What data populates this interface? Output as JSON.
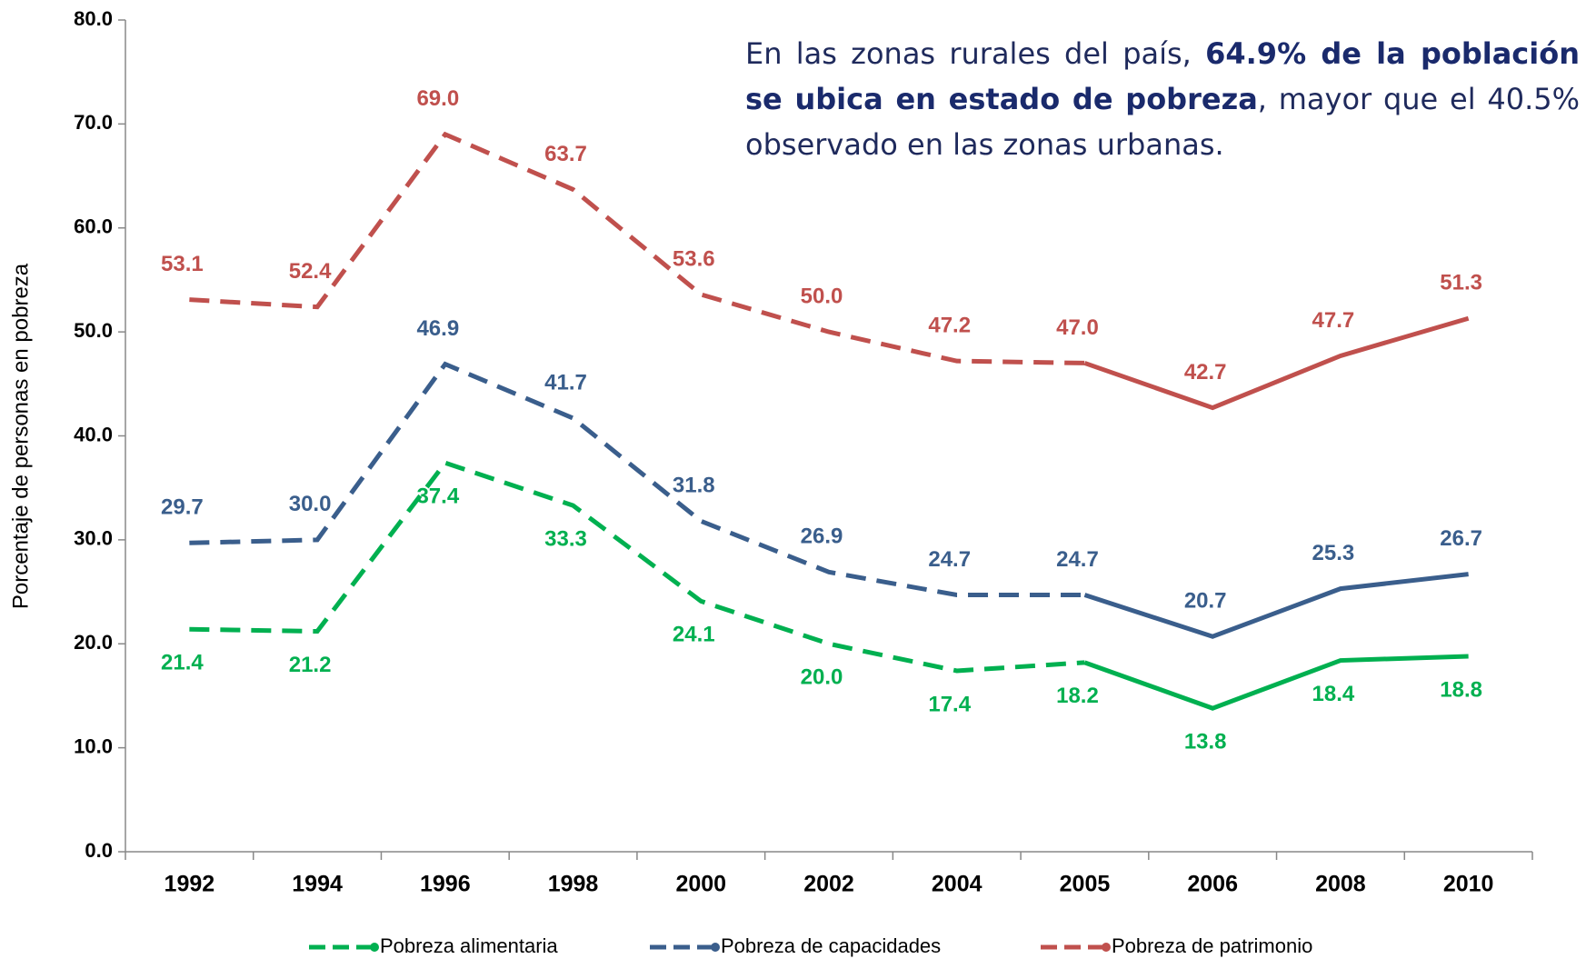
{
  "chart_data": {
    "type": "line",
    "y_axis_label": "Porcentaje de personas en pobreza",
    "annotation": [
      "En las zonas rurales del país, ",
      "64.9% de la población se ubica en estado de pobreza",
      ", mayor que el 40.5% observado en las zonas urbanas."
    ],
    "categories": [
      "1992",
      "1994",
      "1996",
      "1998",
      "2000",
      "2002",
      "2004",
      "2005",
      "2006",
      "2008",
      "2010"
    ],
    "dashed_until": "2005",
    "ylim": [
      0,
      80
    ],
    "yticks": [
      {
        "value": 0,
        "label": "0.0"
      },
      {
        "value": 10,
        "label": "10.0"
      },
      {
        "value": 20,
        "label": "20.0"
      },
      {
        "value": 30,
        "label": "30.0"
      },
      {
        "value": 40,
        "label": "40.0"
      },
      {
        "value": 50,
        "label": "50.0"
      },
      {
        "value": 60,
        "label": "60.0"
      },
      {
        "value": 70,
        "label": "70.0"
      },
      {
        "value": 80,
        "label": "80.0"
      }
    ],
    "series": [
      {
        "name": "Pobreza alimentaria",
        "color": "#00b050",
        "label_position": "below",
        "values": [
          21.4,
          21.2,
          37.4,
          33.3,
          24.1,
          20.0,
          17.4,
          18.2,
          13.8,
          18.4,
          18.8
        ],
        "value_labels": [
          "21.4",
          "21.2",
          "37.4",
          "33.3",
          "24.1",
          "20.0",
          "17.4",
          "18.2",
          "13.8",
          "18.4",
          "18.8"
        ]
      },
      {
        "name": "Pobreza de capacidades",
        "color": "#3a5e8c",
        "label_position": "above",
        "values": [
          29.7,
          30.0,
          46.9,
          41.7,
          31.8,
          26.9,
          24.7,
          24.7,
          20.7,
          25.3,
          26.7
        ],
        "value_labels": [
          "29.7",
          "30.0",
          "46.9",
          "41.7",
          "31.8",
          "26.9",
          "24.7",
          "24.7",
          "20.7",
          "25.3",
          "26.7"
        ]
      },
      {
        "name": "Pobreza de patrimonio",
        "color": "#c0504d",
        "label_position": "above",
        "values": [
          53.1,
          52.4,
          69.0,
          63.7,
          53.6,
          50.0,
          47.2,
          47.0,
          42.7,
          47.7,
          51.3
        ],
        "value_labels": [
          "53.1",
          "52.4",
          "69.0",
          "63.7",
          "53.6",
          "50.0",
          "47.2",
          "47.0",
          "42.7",
          "47.7",
          "51.3"
        ]
      }
    ]
  }
}
